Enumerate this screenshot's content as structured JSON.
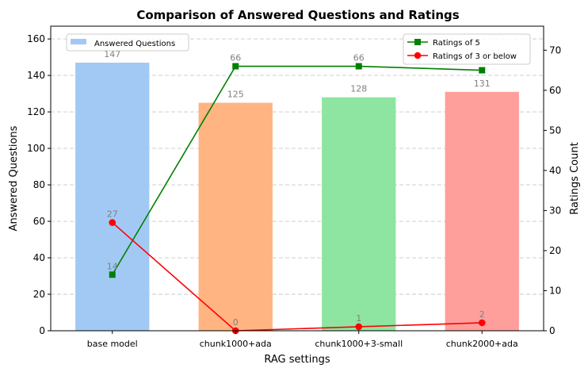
{
  "chart_data": {
    "type": "bar",
    "title": "Comparison of Answered Questions and Ratings",
    "xlabel": "RAG settings",
    "ylabel": "Answered Questions",
    "y2label": "Ratings Count",
    "categories": [
      "base model",
      "chunk1000+ada",
      "chunk1000+3-small",
      "chunk2000+ada"
    ],
    "ylim": [
      0,
      167
    ],
    "yticks": [
      0,
      20,
      40,
      60,
      80,
      100,
      120,
      140,
      160
    ],
    "y2lim": [
      0,
      76
    ],
    "y2ticks": [
      0,
      10,
      20,
      30,
      40,
      50,
      60,
      70
    ],
    "grid": "horizontal dashed",
    "bars": {
      "name": "Answered Questions",
      "values": [
        147,
        125,
        128,
        131
      ],
      "colors": [
        "#a1c9f4",
        "#ffb482",
        "#8de5a1",
        "#ff9f9b"
      ]
    },
    "lines": [
      {
        "name": "Ratings of 5",
        "values": [
          14,
          66,
          66,
          65
        ],
        "labels": [
          "14",
          "66",
          "66",
          ""
        ],
        "color": "#008000",
        "marker": "square",
        "axis": "right"
      },
      {
        "name": "Ratings of 3 or below",
        "values": [
          27,
          0,
          1,
          2
        ],
        "labels": [
          "27",
          "0",
          "1",
          "2"
        ],
        "color": "#ff0000",
        "marker": "circle",
        "axis": "right"
      }
    ],
    "legends": {
      "bars": "top-left",
      "lines": "top-right"
    }
  }
}
